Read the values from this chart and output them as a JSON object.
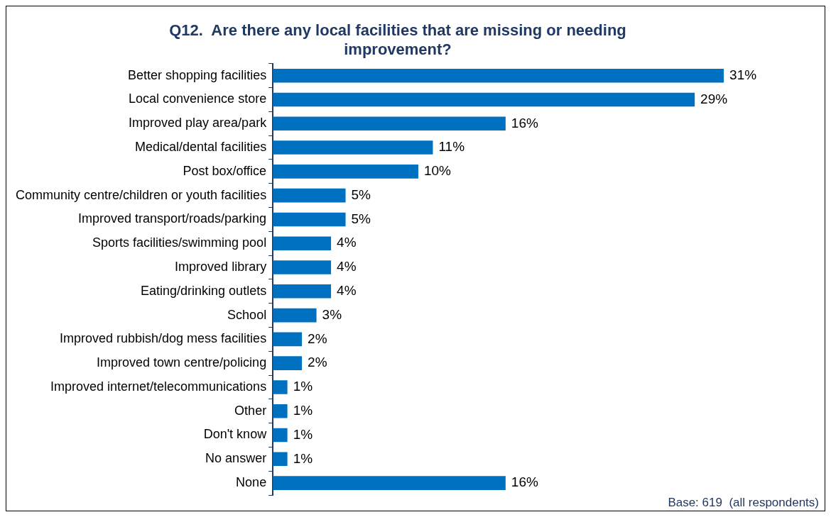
{
  "chart_data": {
    "type": "bar",
    "orientation": "horizontal",
    "title": "Q12.  Are there any local facilities that are missing or needing improvement?",
    "categories": [
      "Better shopping facilities",
      "Local convenience store",
      "Improved play area/park",
      "Medical/dental facilities",
      "Post box/office",
      "Community centre/children or youth facilities",
      "Improved transport/roads/parking",
      "Sports facilities/swimming pool",
      "Improved library",
      "Eating/drinking outlets",
      "School",
      "Improved rubbish/dog mess facilities",
      "Improved town centre/policing",
      "Improved internet/telecommunications",
      "Other",
      "Don't know",
      "No answer",
      "None"
    ],
    "values": [
      31,
      29,
      16,
      11,
      10,
      5,
      5,
      4,
      4,
      4,
      3,
      2,
      2,
      1,
      1,
      1,
      1,
      16
    ],
    "value_labels": [
      "31%",
      "29%",
      "16%",
      "11%",
      "10%",
      "5%",
      "5%",
      "4%",
      "4%",
      "4%",
      "3%",
      "2%",
      "2%",
      "1%",
      "1%",
      "1%",
      "1%",
      "16%"
    ],
    "color": "#0070c0",
    "legend": false,
    "annotations": [
      "Base: 619  (all respondents)"
    ]
  }
}
